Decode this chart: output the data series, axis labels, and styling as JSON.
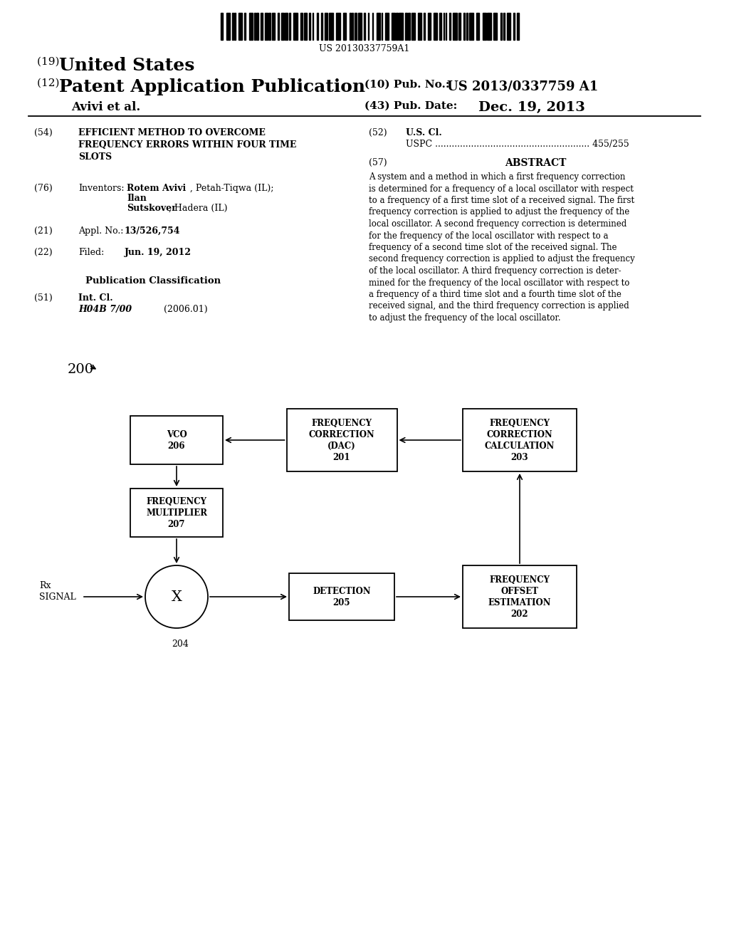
{
  "background_color": "#ffffff",
  "barcode_text": "US 20130337759A1",
  "title_19_prefix": "(19) ",
  "title_19_main": "United States",
  "title_12_prefix": "(12) ",
  "title_12_main": "Patent Application Publication",
  "pub_no_label": "(10) Pub. No.:",
  "pub_no_value": "US 2013/0337759 A1",
  "authors": "Avivi et al.",
  "pub_date_label": "(43) Pub. Date:",
  "pub_date_value": "Dec. 19, 2013",
  "field54_label": "(54)",
  "field54_text": "EFFICIENT METHOD TO OVERCOME\nFREQUENCY ERRORS WITHIN FOUR TIME\nSLOTS",
  "field52_label": "(52)",
  "field52_title": "U.S. Cl.",
  "field52_uspc": "USPC ........................................................ 455/255",
  "field57_label": "(57)",
  "field57_title": "ABSTRACT",
  "abstract_text": "A system and a method in which a first frequency correction\nis determined for a frequency of a local oscillator with respect\nto a frequency of a first time slot of a received signal. The first\nfrequency correction is applied to adjust the frequency of the\nlocal oscillator. A second frequency correction is determined\nfor the frequency of the local oscillator with respect to a\nfrequency of a second time slot of the received signal. The\nsecond frequency correction is applied to adjust the frequency\nof the local oscillator. A third frequency correction is deter-\nmined for the frequency of the local oscillator with respect to\na frequency of a third time slot and a fourth time slot of the\nreceived signal, and the third frequency correction is applied\nto adjust the frequency of the local oscillator.",
  "field76_label": "(76)",
  "field76_title": "Inventors:",
  "field21_label": "(21)",
  "field22_label": "(22)",
  "pub_class_title": "Publication Classification",
  "field51_label": "(51)",
  "field51_title": "Int. Cl.",
  "field51_class": "H04B 7/00",
  "field51_year": "(2006.01)",
  "diagram_label": "200"
}
